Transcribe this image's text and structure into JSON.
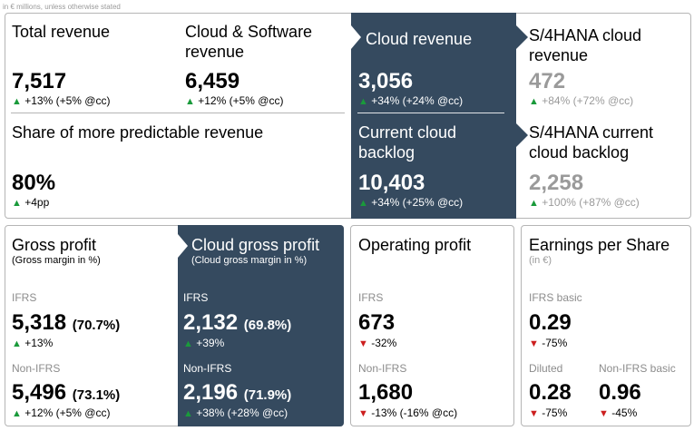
{
  "note": "in € millions, unless otherwise stated",
  "top": {
    "total_revenue": {
      "label": "Total revenue",
      "value": "7,517",
      "change": "+13% (+5% @cc)"
    },
    "cloud_software": {
      "label_line1": "Cloud & Software",
      "label_line2": "revenue",
      "value": "6,459",
      "change": "+12% (+5% @cc)"
    },
    "cloud_revenue": {
      "label": "Cloud revenue",
      "value": "3,056",
      "change": "+34% (+24% @cc)"
    },
    "s4_cloud_revenue": {
      "label_line1": "S/4HANA cloud",
      "label_line2": "revenue",
      "value": "472",
      "change": "+84% (+72% @cc)"
    },
    "predictable": {
      "label": "Share of more predictable revenue",
      "value": "80%",
      "change": "+4pp"
    },
    "current_cloud_backlog": {
      "label_line1": "Current cloud",
      "label_line2": "backlog",
      "value": "10,403",
      "change": "+34% (+25% @cc)"
    },
    "s4_current_backlog": {
      "label_line1": "S/4HANA current",
      "label_line2": "cloud backlog",
      "value": "2,258",
      "change": "+100% (+87% @cc)"
    }
  },
  "gross_profit": {
    "label": "Gross profit",
    "sub": "(Gross margin in %)",
    "ifrs_label": "IFRS",
    "ifrs_value": "5,318",
    "ifrs_pct": "(70.7%)",
    "ifrs_change": "+13%",
    "nonifrs_label": "Non-IFRS",
    "nonifrs_value": "5,496",
    "nonifrs_pct": "(73.1%)",
    "nonifrs_change": "+12% (+5% @cc)"
  },
  "cloud_gross_profit": {
    "label": "Cloud gross profit",
    "sub": "(Cloud gross margin in %)",
    "ifrs_label": "IFRS",
    "ifrs_value": "2,132",
    "ifrs_pct": "(69.8%)",
    "ifrs_change": "+39%",
    "nonifrs_label": "Non-IFRS",
    "nonifrs_value": "2,196",
    "nonifrs_pct": "(71.9%)",
    "nonifrs_change": "+38% (+28% @cc)"
  },
  "operating_profit": {
    "label": "Operating profit",
    "ifrs_label": "IFRS",
    "ifrs_value": "673",
    "ifrs_change": "-32%",
    "nonifrs_label": "Non-IFRS",
    "nonifrs_value": "1,680",
    "nonifrs_change": "-13% (-16% @cc)"
  },
  "eps": {
    "label": "Earnings per Share",
    "sub": "(in €)",
    "ifrs_basic_label": "IFRS basic",
    "ifrs_basic_value": "0.29",
    "ifrs_basic_change": "-75%",
    "diluted_label": "Diluted",
    "diluted_value": "0.28",
    "diluted_change": "-75%",
    "nonifrs_basic_label": "Non-IFRS basic",
    "nonifrs_basic_value": "0.96",
    "nonifrs_basic_change": "-45%"
  },
  "icons": {
    "up": "triangle-up-green",
    "down": "triangle-down-red",
    "chevron": "chevron-right"
  },
  "colors": {
    "dark_panel": "#354a5f",
    "up": "#1a9a3b",
    "down": "#cc1f1f",
    "muted": "#9a9a9a"
  }
}
